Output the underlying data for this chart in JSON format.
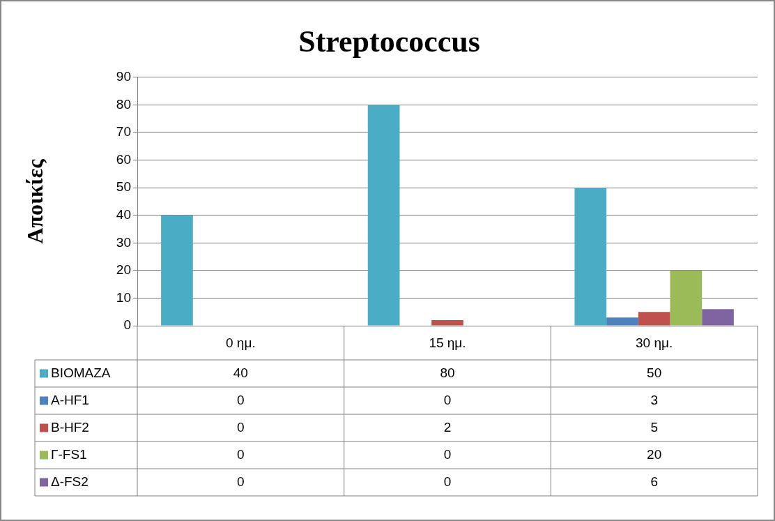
{
  "chart_data": {
    "type": "bar",
    "title": "Streptococcus",
    "ylabel": "Αποικίες",
    "categories": [
      "0 ημ.",
      "15 ημ.",
      "30 ημ."
    ],
    "series": [
      {
        "name": "BIOMAZA",
        "color": "#4bacc6",
        "values": [
          40,
          80,
          50
        ]
      },
      {
        "name": "A-HF1",
        "color": "#4f81bd",
        "values": [
          0,
          0,
          3
        ]
      },
      {
        "name": "B-HF2",
        "color": "#c0504d",
        "values": [
          0,
          2,
          5
        ]
      },
      {
        "name": "Γ-FS1",
        "color": "#9bbb59",
        "values": [
          0,
          0,
          20
        ]
      },
      {
        "name": "Δ-FS2",
        "color": "#8064a2",
        "values": [
          0,
          0,
          6
        ]
      }
    ],
    "ylim": [
      0,
      90
    ],
    "yticks": [
      0,
      10,
      20,
      30,
      40,
      50,
      60,
      70,
      80,
      90
    ],
    "grid": "y",
    "legend": "bottom",
    "data_labels": true
  }
}
